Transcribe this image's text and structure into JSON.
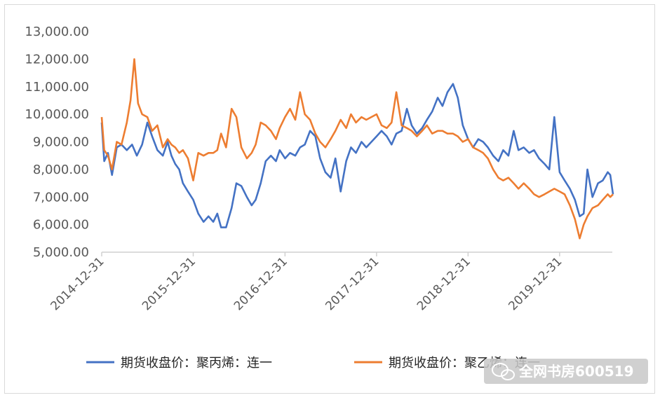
{
  "chart_data": {
    "type": "line",
    "title": "",
    "xlabel": "",
    "ylabel": "",
    "ylim": [
      5000,
      13000
    ],
    "yticks": [
      "13,000.00",
      "12,000.00",
      "11,000.00",
      "10,000.00",
      "9,000.00",
      "8,000.00",
      "7,000.00",
      "6,000.00",
      "5,000.00"
    ],
    "ytick_values": [
      13000,
      12000,
      11000,
      10000,
      9000,
      8000,
      7000,
      6000,
      5000
    ],
    "xticks": [
      "2014-12-31",
      "2015-12-31",
      "2016-12-31",
      "2017-12-31",
      "2018-12-31",
      "2019-12-31"
    ],
    "x_start": "2014-12-31",
    "x_end": "2020-07-31",
    "legend_position": "bottom",
    "series": [
      {
        "name": "期货收盘价：聚丙烯：连一",
        "color": "#4472C4",
        "points": [
          [
            "2014-12-31",
            9700
          ],
          [
            "2015-01-10",
            8300
          ],
          [
            "2015-01-25",
            8600
          ],
          [
            "2015-02-10",
            7800
          ],
          [
            "2015-03-01",
            8800
          ],
          [
            "2015-03-20",
            8900
          ],
          [
            "2015-04-10",
            8700
          ],
          [
            "2015-05-01",
            8900
          ],
          [
            "2015-05-20",
            8500
          ],
          [
            "2015-06-10",
            8900
          ],
          [
            "2015-07-01",
            9700
          ],
          [
            "2015-07-20",
            9200
          ],
          [
            "2015-08-10",
            8700
          ],
          [
            "2015-09-01",
            8500
          ],
          [
            "2015-09-20",
            9000
          ],
          [
            "2015-10-05",
            8500
          ],
          [
            "2015-10-20",
            8200
          ],
          [
            "2015-11-05",
            8000
          ],
          [
            "2015-11-20",
            7500
          ],
          [
            "2015-12-10",
            7200
          ],
          [
            "2015-12-31",
            6900
          ],
          [
            "2016-01-20",
            6400
          ],
          [
            "2016-02-10",
            6100
          ],
          [
            "2016-03-01",
            6300
          ],
          [
            "2016-03-20",
            6100
          ],
          [
            "2016-04-05",
            6400
          ],
          [
            "2016-04-20",
            5900
          ],
          [
            "2016-05-10",
            5900
          ],
          [
            "2016-06-01",
            6600
          ],
          [
            "2016-06-20",
            7500
          ],
          [
            "2016-07-10",
            7400
          ],
          [
            "2016-08-01",
            7000
          ],
          [
            "2016-08-20",
            6700
          ],
          [
            "2016-09-05",
            6900
          ],
          [
            "2016-09-25",
            7500
          ],
          [
            "2016-10-15",
            8300
          ],
          [
            "2016-11-05",
            8500
          ],
          [
            "2016-11-25",
            8300
          ],
          [
            "2016-12-10",
            8700
          ],
          [
            "2016-12-31",
            8400
          ],
          [
            "2017-01-20",
            8600
          ],
          [
            "2017-02-10",
            8500
          ],
          [
            "2017-03-01",
            8800
          ],
          [
            "2017-03-20",
            8900
          ],
          [
            "2017-04-10",
            9400
          ],
          [
            "2017-05-01",
            9200
          ],
          [
            "2017-05-20",
            8400
          ],
          [
            "2017-06-10",
            7900
          ],
          [
            "2017-07-01",
            7700
          ],
          [
            "2017-07-20",
            8400
          ],
          [
            "2017-08-10",
            7200
          ],
          [
            "2017-09-01",
            8300
          ],
          [
            "2017-09-20",
            8800
          ],
          [
            "2017-10-10",
            8600
          ],
          [
            "2017-11-01",
            9000
          ],
          [
            "2017-11-20",
            8800
          ],
          [
            "2017-12-31",
            9200
          ],
          [
            "2018-01-20",
            9400
          ],
          [
            "2018-02-10",
            9200
          ],
          [
            "2018-03-01",
            8900
          ],
          [
            "2018-03-20",
            9300
          ],
          [
            "2018-04-10",
            9400
          ],
          [
            "2018-05-01",
            10200
          ],
          [
            "2018-05-20",
            9600
          ],
          [
            "2018-06-10",
            9300
          ],
          [
            "2018-07-01",
            9500
          ],
          [
            "2018-07-20",
            9800
          ],
          [
            "2018-08-10",
            10100
          ],
          [
            "2018-09-01",
            10600
          ],
          [
            "2018-09-20",
            10300
          ],
          [
            "2018-10-10",
            10800
          ],
          [
            "2018-11-01",
            11100
          ],
          [
            "2018-11-20",
            10600
          ],
          [
            "2018-12-10",
            9600
          ],
          [
            "2018-12-31",
            9100
          ],
          [
            "2019-01-20",
            8800
          ],
          [
            "2019-02-10",
            9100
          ],
          [
            "2019-03-01",
            9000
          ],
          [
            "2019-03-20",
            8800
          ],
          [
            "2019-04-10",
            8500
          ],
          [
            "2019-05-01",
            8300
          ],
          [
            "2019-05-20",
            8700
          ],
          [
            "2019-06-10",
            8500
          ],
          [
            "2019-07-01",
            9400
          ],
          [
            "2019-07-20",
            8700
          ],
          [
            "2019-08-10",
            8800
          ],
          [
            "2019-09-01",
            8600
          ],
          [
            "2019-09-20",
            8700
          ],
          [
            "2019-10-10",
            8400
          ],
          [
            "2019-11-01",
            8200
          ],
          [
            "2019-11-20",
            8000
          ],
          [
            "2019-12-10",
            9900
          ],
          [
            "2019-12-31",
            7900
          ],
          [
            "2020-01-20",
            7600
          ],
          [
            "2020-02-10",
            7300
          ],
          [
            "2020-03-01",
            6900
          ],
          [
            "2020-03-20",
            6300
          ],
          [
            "2020-04-05",
            6400
          ],
          [
            "2020-04-20",
            8000
          ],
          [
            "2020-05-10",
            7000
          ],
          [
            "2020-06-01",
            7500
          ],
          [
            "2020-06-20",
            7600
          ],
          [
            "2020-07-10",
            7900
          ],
          [
            "2020-07-20",
            7800
          ],
          [
            "2020-07-31",
            7100
          ]
        ]
      },
      {
        "name": "期货收盘价：聚乙烯：连一",
        "color": "#ED7D31",
        "points": [
          [
            "2014-12-31",
            9900
          ],
          [
            "2015-01-10",
            8700
          ],
          [
            "2015-01-25",
            8500
          ],
          [
            "2015-02-10",
            8000
          ],
          [
            "2015-03-01",
            9000
          ],
          [
            "2015-03-20",
            8900
          ],
          [
            "2015-04-10",
            9700
          ],
          [
            "2015-04-25",
            10500
          ],
          [
            "2015-05-10",
            12000
          ],
          [
            "2015-05-25",
            10400
          ],
          [
            "2015-06-10",
            10000
          ],
          [
            "2015-07-01",
            9900
          ],
          [
            "2015-07-20",
            9400
          ],
          [
            "2015-08-10",
            9600
          ],
          [
            "2015-09-01",
            8800
          ],
          [
            "2015-09-20",
            9100
          ],
          [
            "2015-10-05",
            8900
          ],
          [
            "2015-10-20",
            8800
          ],
          [
            "2015-11-05",
            8600
          ],
          [
            "2015-11-20",
            8700
          ],
          [
            "2015-12-10",
            8400
          ],
          [
            "2015-12-31",
            7600
          ],
          [
            "2016-01-20",
            8600
          ],
          [
            "2016-02-10",
            8500
          ],
          [
            "2016-03-01",
            8600
          ],
          [
            "2016-03-20",
            8600
          ],
          [
            "2016-04-05",
            8700
          ],
          [
            "2016-04-20",
            9300
          ],
          [
            "2016-05-10",
            8800
          ],
          [
            "2016-06-01",
            10200
          ],
          [
            "2016-06-20",
            9900
          ],
          [
            "2016-07-10",
            8800
          ],
          [
            "2016-08-01",
            8400
          ],
          [
            "2016-08-20",
            8600
          ],
          [
            "2016-09-05",
            8900
          ],
          [
            "2016-09-25",
            9700
          ],
          [
            "2016-10-15",
            9600
          ],
          [
            "2016-11-05",
            9400
          ],
          [
            "2016-11-25",
            9100
          ],
          [
            "2016-12-10",
            9500
          ],
          [
            "2016-12-31",
            9900
          ],
          [
            "2017-01-20",
            10200
          ],
          [
            "2017-02-10",
            9800
          ],
          [
            "2017-03-01",
            10800
          ],
          [
            "2017-03-20",
            10000
          ],
          [
            "2017-04-10",
            9800
          ],
          [
            "2017-05-01",
            9300
          ],
          [
            "2017-05-20",
            9000
          ],
          [
            "2017-06-10",
            8800
          ],
          [
            "2017-07-01",
            9100
          ],
          [
            "2017-07-20",
            9400
          ],
          [
            "2017-08-10",
            9800
          ],
          [
            "2017-09-01",
            9500
          ],
          [
            "2017-09-20",
            10000
          ],
          [
            "2017-10-10",
            9700
          ],
          [
            "2017-11-01",
            9900
          ],
          [
            "2017-11-20",
            9800
          ],
          [
            "2017-12-31",
            10000
          ],
          [
            "2018-01-20",
            9600
          ],
          [
            "2018-02-10",
            9500
          ],
          [
            "2018-03-01",
            9700
          ],
          [
            "2018-03-20",
            10800
          ],
          [
            "2018-04-10",
            9600
          ],
          [
            "2018-05-01",
            9500
          ],
          [
            "2018-05-20",
            9400
          ],
          [
            "2018-06-10",
            9200
          ],
          [
            "2018-07-01",
            9400
          ],
          [
            "2018-07-20",
            9600
          ],
          [
            "2018-08-10",
            9300
          ],
          [
            "2018-09-01",
            9400
          ],
          [
            "2018-09-20",
            9400
          ],
          [
            "2018-10-10",
            9300
          ],
          [
            "2018-11-01",
            9300
          ],
          [
            "2018-11-20",
            9200
          ],
          [
            "2018-12-10",
            9000
          ],
          [
            "2018-12-31",
            9100
          ],
          [
            "2019-01-20",
            8800
          ],
          [
            "2019-02-10",
            8700
          ],
          [
            "2019-03-01",
            8600
          ],
          [
            "2019-03-20",
            8400
          ],
          [
            "2019-04-10",
            8000
          ],
          [
            "2019-05-01",
            7700
          ],
          [
            "2019-05-20",
            7600
          ],
          [
            "2019-06-10",
            7700
          ],
          [
            "2019-07-01",
            7500
          ],
          [
            "2019-07-20",
            7300
          ],
          [
            "2019-08-10",
            7500
          ],
          [
            "2019-09-01",
            7300
          ],
          [
            "2019-09-20",
            7100
          ],
          [
            "2019-10-10",
            7000
          ],
          [
            "2019-11-01",
            7100
          ],
          [
            "2019-11-20",
            7200
          ],
          [
            "2019-12-10",
            7300
          ],
          [
            "2019-12-31",
            7200
          ],
          [
            "2020-01-20",
            7100
          ],
          [
            "2020-02-10",
            6700
          ],
          [
            "2020-03-01",
            6200
          ],
          [
            "2020-03-20",
            5500
          ],
          [
            "2020-04-05",
            6000
          ],
          [
            "2020-04-20",
            6300
          ],
          [
            "2020-05-10",
            6600
          ],
          [
            "2020-06-01",
            6700
          ],
          [
            "2020-06-20",
            6900
          ],
          [
            "2020-07-10",
            7100
          ],
          [
            "2020-07-20",
            7000
          ],
          [
            "2020-07-31",
            7100
          ]
        ]
      }
    ]
  },
  "watermark": {
    "text": "全网书房600519"
  }
}
